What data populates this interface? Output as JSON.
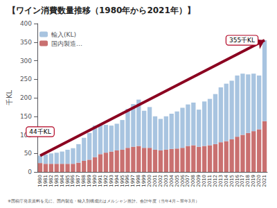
{
  "chart_data": {
    "type": "bar",
    "title": "【ワイン消費数量推移（1980年から2021年）】",
    "ylabel": "千KL",
    "footnote": "※国税庁発表資料を元に、国内製造・輸入別構成比はメルシャン推計。会計年度（当年4月～翠年3月）",
    "categories": [
      "1980",
      "1981",
      "1982",
      "1983",
      "1984",
      "1985",
      "1986",
      "1987",
      "1988",
      "1989",
      "1990",
      "1991",
      "1992",
      "1993",
      "1994",
      "1995",
      "1996",
      "1997",
      "1998",
      "1999",
      "2000",
      "2001",
      "2002",
      "2003",
      "2004",
      "2005",
      "2006",
      "2007",
      "2008",
      "2009",
      "2010",
      "2011",
      "2012",
      "2013",
      "2014",
      "2015",
      "2016",
      "2017",
      "2018",
      "2019",
      "2020",
      "2021"
    ],
    "series": [
      {
        "name": "国内製造…",
        "color": "#c97070",
        "values": [
          24,
          22,
          22,
          22,
          22,
          22,
          22,
          25,
          30,
          33,
          40,
          48,
          52,
          55,
          58,
          60,
          65,
          68,
          70,
          65,
          65,
          60,
          58,
          60,
          62,
          63,
          65,
          70,
          72,
          68,
          70,
          72,
          75,
          80,
          83,
          88,
          95,
          100,
          105,
          110,
          115,
          137
        ]
      },
      {
        "name": "輸入(KL)",
        "color": "#a8c4e0",
        "values": [
          20,
          25,
          28,
          30,
          33,
          38,
          42,
          50,
          62,
          72,
          85,
          80,
          75,
          70,
          72,
          80,
          105,
          115,
          125,
          100,
          110,
          90,
          85,
          90,
          95,
          100,
          108,
          112,
          115,
          100,
          120,
          125,
          135,
          148,
          155,
          158,
          165,
          165,
          158,
          155,
          145,
          218
        ]
      }
    ],
    "stacked": true,
    "ylim": [
      0,
      400
    ],
    "yticks": [
      0,
      50,
      100,
      150,
      200,
      250,
      300,
      350,
      400
    ],
    "grid": false,
    "legend": "upper left",
    "annotations": [
      {
        "text": "44千KL",
        "x": "1980",
        "y": 44
      },
      {
        "text": "355千KL",
        "x": "2021",
        "y": 355
      }
    ],
    "arrow": {
      "color": "#8b0020"
    }
  }
}
